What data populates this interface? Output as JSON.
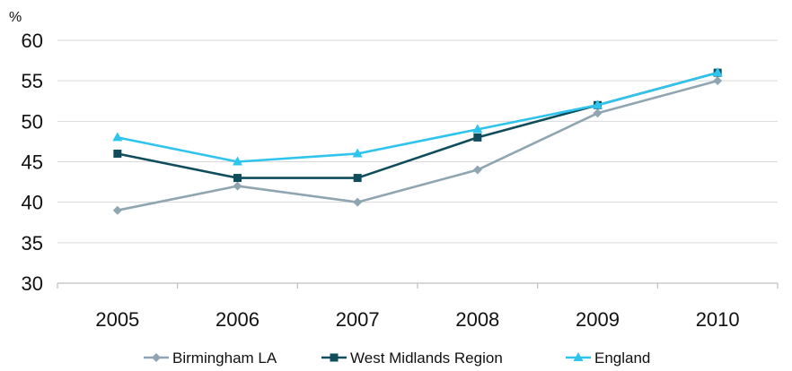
{
  "chart_data": {
    "type": "line",
    "title": "",
    "ylabel": "%",
    "xlabel": "",
    "categories": [
      "2005",
      "2006",
      "2007",
      "2008",
      "2009",
      "2010"
    ],
    "ylim": [
      30,
      60
    ],
    "yticks": [
      30,
      35,
      40,
      45,
      50,
      55,
      60
    ],
    "grid": true,
    "legend_position": "bottom",
    "series": [
      {
        "name": "Birmingham LA",
        "values": [
          39,
          42,
          40,
          44,
          51,
          55
        ],
        "color": "#8FA5B1",
        "marker": "diamond"
      },
      {
        "name": "West Midlands Region",
        "values": [
          46,
          43,
          43,
          48,
          52,
          56
        ],
        "color": "#0F4D5C",
        "marker": "square"
      },
      {
        "name": "England",
        "values": [
          48,
          45,
          46,
          49,
          52,
          56
        ],
        "color": "#2EC4EE",
        "marker": "triangle"
      }
    ]
  }
}
